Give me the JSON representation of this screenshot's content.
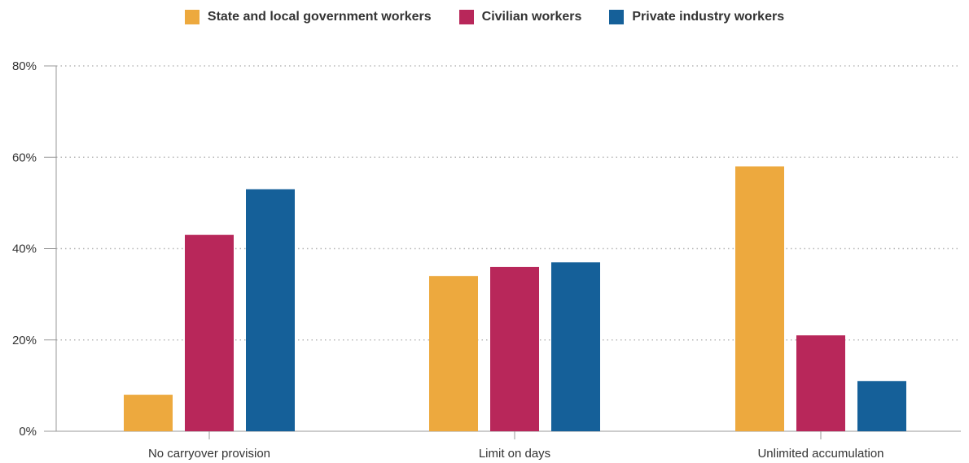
{
  "chart_data": {
    "type": "bar",
    "title": "",
    "xlabel": "",
    "ylabel": "",
    "categories": [
      "No carryover provision",
      "Limit on days",
      "Unlimited accumulation"
    ],
    "series": [
      {
        "name": "State and local government workers",
        "color": "#EDA93E",
        "values": [
          8,
          34,
          58
        ]
      },
      {
        "name": "Civilian workers",
        "color": "#B8275A",
        "values": [
          43,
          36,
          21
        ]
      },
      {
        "name": "Private industry workers",
        "color": "#156099",
        "values": [
          53,
          37,
          11
        ]
      }
    ],
    "ylim": [
      0,
      80
    ],
    "yticks": [
      0,
      20,
      40,
      60,
      80
    ],
    "ytick_labels": [
      "0%",
      "20%",
      "40%",
      "60%",
      "80%"
    ],
    "grid": true,
    "legend_position": "top-center"
  }
}
